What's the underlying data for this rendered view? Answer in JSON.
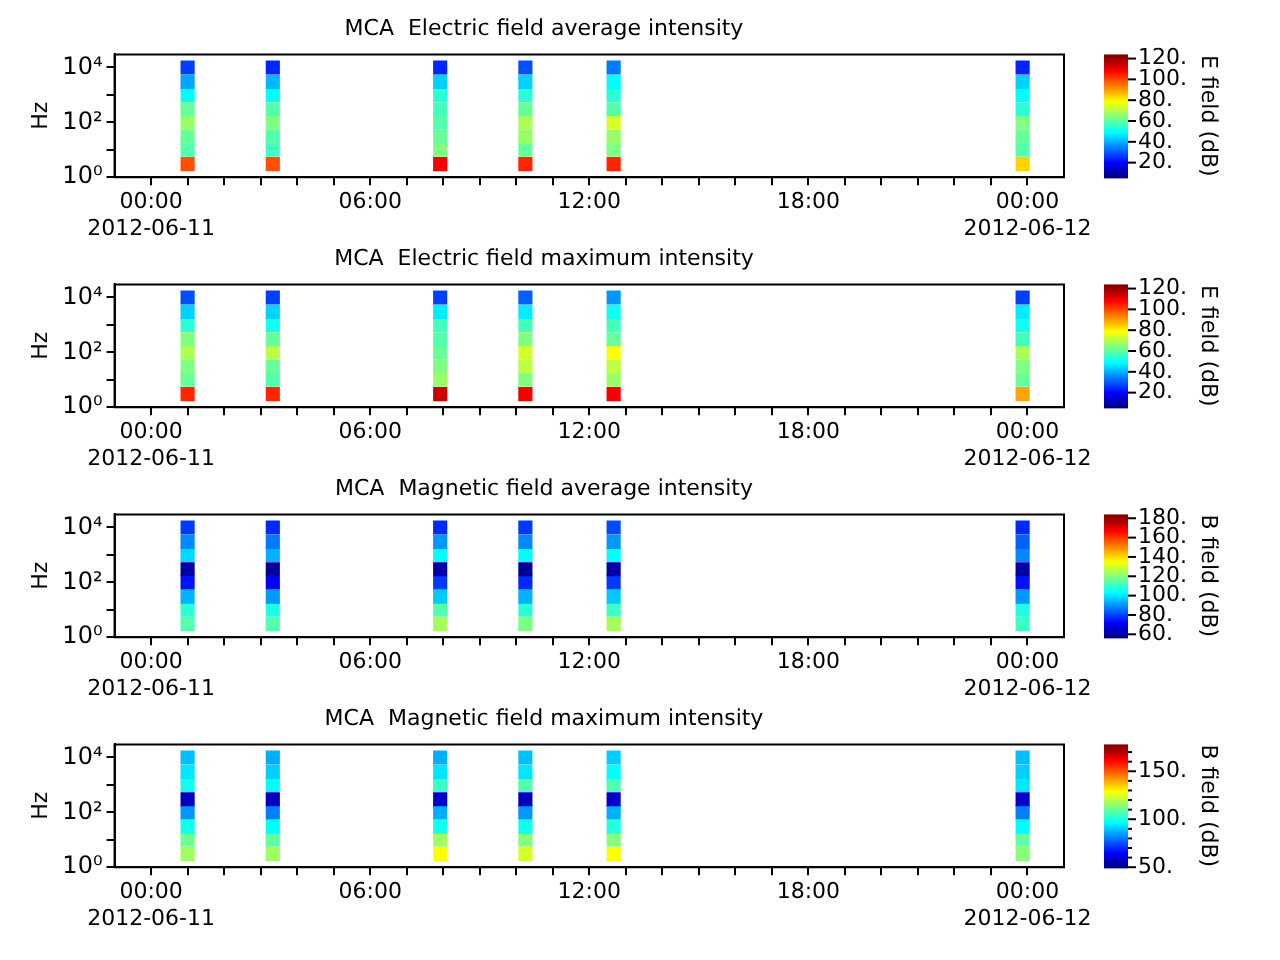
{
  "chart_data": [
    {
      "type": "scatter",
      "title": "MCA  Electric field average intensity",
      "ylabel": "Hz",
      "clabel": "E field (dB)",
      "marker": "square",
      "log": "y",
      "clim": [
        6,
        124
      ],
      "cticks": [
        {
          "value": 20,
          "label": "20."
        },
        {
          "value": 40,
          "label": "40."
        },
        {
          "value": 60,
          "label": "60."
        },
        {
          "value": 80,
          "label": "80."
        },
        {
          "value": 100,
          "label": "100."
        },
        {
          "value": 120,
          "label": "120."
        }
      ],
      "x": [
        "2012-06-11T01:00",
        "2012-06-11T01:00",
        "2012-06-11T01:00",
        "2012-06-11T01:00",
        "2012-06-11T01:00",
        "2012-06-11T01:00",
        "2012-06-11T01:00",
        "2012-06-11T01:00",
        "2012-06-11T03:20",
        "2012-06-11T03:20",
        "2012-06-11T03:20",
        "2012-06-11T03:20",
        "2012-06-11T03:20",
        "2012-06-11T03:20",
        "2012-06-11T03:20",
        "2012-06-11T03:20",
        "2012-06-11T07:55",
        "2012-06-11T07:55",
        "2012-06-11T07:55",
        "2012-06-11T07:55",
        "2012-06-11T07:55",
        "2012-06-11T07:55",
        "2012-06-11T07:55",
        "2012-06-11T07:55",
        "2012-06-11T10:15",
        "2012-06-11T10:15",
        "2012-06-11T10:15",
        "2012-06-11T10:15",
        "2012-06-11T10:15",
        "2012-06-11T10:15",
        "2012-06-11T10:15",
        "2012-06-11T10:15",
        "2012-06-11T12:40",
        "2012-06-11T12:40",
        "2012-06-11T12:40",
        "2012-06-11T12:40",
        "2012-06-11T12:40",
        "2012-06-11T12:40",
        "2012-06-11T12:40",
        "2012-06-11T12:40",
        "2012-06-11T23:52",
        "2012-06-11T23:52",
        "2012-06-11T23:52",
        "2012-06-11T23:52",
        "2012-06-11T23:52",
        "2012-06-11T23:52",
        "2012-06-11T23:52",
        "2012-06-11T23:52"
      ],
      "values": [
        3,
        10,
        30,
        100,
        300,
        1000,
        3000,
        10000,
        3,
        10,
        30,
        100,
        300,
        1000,
        3000,
        10000,
        3,
        10,
        30,
        100,
        300,
        1000,
        3000,
        10000,
        3,
        10,
        30,
        100,
        300,
        1000,
        3000,
        10000,
        3,
        10,
        30,
        100,
        300,
        1000,
        3000,
        10000,
        3,
        10,
        30,
        100,
        300,
        1000,
        3000,
        10000
      ],
      "cvalues": [
        100,
        60,
        62,
        68,
        62,
        50,
        40,
        28,
        100,
        58,
        60,
        65,
        60,
        50,
        42,
        25,
        110,
        65,
        62,
        60,
        58,
        55,
        45,
        25,
        105,
        62,
        68,
        70,
        62,
        55,
        45,
        30,
        105,
        65,
        68,
        75,
        60,
        55,
        50,
        35,
        85,
        60,
        62,
        65,
        55,
        50,
        45,
        25
      ],
      "xlim": [
        "2012-06-10T23:00",
        "2012-06-12T01:00"
      ],
      "xticks": [
        {
          "value": "2012-06-11T00:00",
          "label": "00:00\n2012-06-11"
        },
        {
          "value": "2012-06-11T06:00",
          "label": "06:00"
        },
        {
          "value": "2012-06-11T12:00",
          "label": "12:00"
        },
        {
          "value": "2012-06-11T18:00",
          "label": "18:00"
        },
        {
          "value": "2012-06-12T00:00",
          "label": "00:00\n2012-06-12"
        },
        {
          "value": "2012-06-11T01:00",
          "label": null
        },
        {
          "value": "2012-06-11T02:00",
          "label": null
        },
        {
          "value": "2012-06-11T03:00",
          "label": null
        },
        {
          "value": "2012-06-11T04:00",
          "label": null
        },
        {
          "value": "2012-06-11T05:00",
          "label": null
        },
        {
          "value": "2012-06-11T07:00",
          "label": null
        },
        {
          "value": "2012-06-11T08:00",
          "label": null
        },
        {
          "value": "2012-06-11T09:00",
          "label": null
        },
        {
          "value": "2012-06-11T10:00",
          "label": null
        },
        {
          "value": "2012-06-11T11:00",
          "label": null
        },
        {
          "value": "2012-06-11T13:00",
          "label": null
        },
        {
          "value": "2012-06-11T14:00",
          "label": null
        },
        {
          "value": "2012-06-11T15:00",
          "label": null
        },
        {
          "value": "2012-06-11T16:00",
          "label": null
        },
        {
          "value": "2012-06-11T17:00",
          "label": null
        },
        {
          "value": "2012-06-11T19:00",
          "label": null
        },
        {
          "value": "2012-06-11T20:00",
          "label": null
        },
        {
          "value": "2012-06-11T21:00",
          "label": null
        },
        {
          "value": "2012-06-11T22:00",
          "label": null
        },
        {
          "value": "2012-06-11T23:00",
          "label": null
        }
      ],
      "ylim": [
        1,
        30000
      ],
      "yticks": [
        {
          "value": 1,
          "label": "10⁰"
        },
        {
          "value": 10,
          "label": null
        },
        {
          "value": 100,
          "label": "10²"
        },
        {
          "value": 1000,
          "label": null
        },
        {
          "value": 10000,
          "label": "10⁴"
        }
      ]
    },
    {
      "type": "scatter",
      "title": "MCA  Electric field maximum intensity",
      "ylabel": "Hz",
      "clabel": "E field (dB)",
      "marker": "square",
      "log": "y",
      "clim": [
        6,
        124
      ],
      "cticks": [
        {
          "value": 20,
          "label": "20."
        },
        {
          "value": 40,
          "label": "40."
        },
        {
          "value": 60,
          "label": "60."
        },
        {
          "value": 80,
          "label": "80."
        },
        {
          "value": 100,
          "label": "100."
        },
        {
          "value": 120,
          "label": "120."
        }
      ],
      "x": [
        "2012-06-11T01:00",
        "2012-06-11T01:00",
        "2012-06-11T01:00",
        "2012-06-11T01:00",
        "2012-06-11T01:00",
        "2012-06-11T01:00",
        "2012-06-11T01:00",
        "2012-06-11T01:00",
        "2012-06-11T03:20",
        "2012-06-11T03:20",
        "2012-06-11T03:20",
        "2012-06-11T03:20",
        "2012-06-11T03:20",
        "2012-06-11T03:20",
        "2012-06-11T03:20",
        "2012-06-11T03:20",
        "2012-06-11T07:55",
        "2012-06-11T07:55",
        "2012-06-11T07:55",
        "2012-06-11T07:55",
        "2012-06-11T07:55",
        "2012-06-11T07:55",
        "2012-06-11T07:55",
        "2012-06-11T07:55",
        "2012-06-11T10:15",
        "2012-06-11T10:15",
        "2012-06-11T10:15",
        "2012-06-11T10:15",
        "2012-06-11T10:15",
        "2012-06-11T10:15",
        "2012-06-11T10:15",
        "2012-06-11T10:15",
        "2012-06-11T12:40",
        "2012-06-11T12:40",
        "2012-06-11T12:40",
        "2012-06-11T12:40",
        "2012-06-11T12:40",
        "2012-06-11T12:40",
        "2012-06-11T12:40",
        "2012-06-11T12:40",
        "2012-06-11T23:52",
        "2012-06-11T23:52",
        "2012-06-11T23:52",
        "2012-06-11T23:52",
        "2012-06-11T23:52",
        "2012-06-11T23:52",
        "2012-06-11T23:52",
        "2012-06-11T23:52"
      ],
      "values": [
        3,
        10,
        30,
        100,
        300,
        1000,
        3000,
        10000,
        3,
        10,
        30,
        100,
        300,
        1000,
        3000,
        10000,
        3,
        10,
        30,
        100,
        300,
        1000,
        3000,
        10000,
        3,
        10,
        30,
        100,
        300,
        1000,
        3000,
        10000,
        3,
        10,
        30,
        100,
        300,
        1000,
        3000,
        10000,
        3,
        10,
        30,
        100,
        300,
        1000,
        3000,
        10000
      ],
      "cvalues": [
        105,
        62,
        65,
        70,
        65,
        55,
        45,
        30,
        105,
        60,
        62,
        72,
        62,
        52,
        45,
        28,
        115,
        68,
        65,
        62,
        60,
        58,
        48,
        28,
        110,
        65,
        72,
        75,
        65,
        58,
        48,
        32,
        110,
        68,
        72,
        80,
        62,
        58,
        52,
        38,
        90,
        62,
        65,
        70,
        58,
        52,
        48,
        28
      ],
      "xlim": [
        "2012-06-10T23:00",
        "2012-06-12T01:00"
      ],
      "xticks": [
        {
          "value": "2012-06-11T00:00",
          "label": "00:00\n2012-06-11"
        },
        {
          "value": "2012-06-11T06:00",
          "label": "06:00"
        },
        {
          "value": "2012-06-11T12:00",
          "label": "12:00"
        },
        {
          "value": "2012-06-11T18:00",
          "label": "18:00"
        },
        {
          "value": "2012-06-12T00:00",
          "label": "00:00\n2012-06-12"
        },
        {
          "value": "2012-06-11T01:00",
          "label": null
        },
        {
          "value": "2012-06-11T02:00",
          "label": null
        },
        {
          "value": "2012-06-11T03:00",
          "label": null
        },
        {
          "value": "2012-06-11T04:00",
          "label": null
        },
        {
          "value": "2012-06-11T05:00",
          "label": null
        },
        {
          "value": "2012-06-11T07:00",
          "label": null
        },
        {
          "value": "2012-06-11T08:00",
          "label": null
        },
        {
          "value": "2012-06-11T09:00",
          "label": null
        },
        {
          "value": "2012-06-11T10:00",
          "label": null
        },
        {
          "value": "2012-06-11T11:00",
          "label": null
        },
        {
          "value": "2012-06-11T13:00",
          "label": null
        },
        {
          "value": "2012-06-11T14:00",
          "label": null
        },
        {
          "value": "2012-06-11T15:00",
          "label": null
        },
        {
          "value": "2012-06-11T16:00",
          "label": null
        },
        {
          "value": "2012-06-11T17:00",
          "label": null
        },
        {
          "value": "2012-06-11T19:00",
          "label": null
        },
        {
          "value": "2012-06-11T20:00",
          "label": null
        },
        {
          "value": "2012-06-11T21:00",
          "label": null
        },
        {
          "value": "2012-06-11T22:00",
          "label": null
        },
        {
          "value": "2012-06-11T23:00",
          "label": null
        }
      ],
      "ylim": [
        1,
        30000
      ],
      "yticks": [
        {
          "value": 1,
          "label": "10⁰"
        },
        {
          "value": 10,
          "label": null
        },
        {
          "value": 100,
          "label": "10²"
        },
        {
          "value": 1000,
          "label": null
        },
        {
          "value": 10000,
          "label": "10⁴"
        }
      ]
    },
    {
      "type": "scatter",
      "title": "MCA  Magnetic field average intensity",
      "ylabel": "Hz",
      "clabel": "B field (dB)",
      "marker": "square",
      "log": "y",
      "clim": [
        57,
        184
      ],
      "cticks": [
        {
          "value": 60,
          "label": "60."
        },
        {
          "value": 80,
          "label": "80."
        },
        {
          "value": 100,
          "label": "100."
        },
        {
          "value": 120,
          "label": "120."
        },
        {
          "value": 140,
          "label": "140."
        },
        {
          "value": 160,
          "label": "160."
        },
        {
          "value": 180,
          "label": "180."
        }
      ],
      "x": [
        "2012-06-11T01:00",
        "2012-06-11T01:00",
        "2012-06-11T01:00",
        "2012-06-11T01:00",
        "2012-06-11T01:00",
        "2012-06-11T01:00",
        "2012-06-11T01:00",
        "2012-06-11T01:00",
        "2012-06-11T03:20",
        "2012-06-11T03:20",
        "2012-06-11T03:20",
        "2012-06-11T03:20",
        "2012-06-11T03:20",
        "2012-06-11T03:20",
        "2012-06-11T03:20",
        "2012-06-11T03:20",
        "2012-06-11T07:55",
        "2012-06-11T07:55",
        "2012-06-11T07:55",
        "2012-06-11T07:55",
        "2012-06-11T07:55",
        "2012-06-11T07:55",
        "2012-06-11T07:55",
        "2012-06-11T07:55",
        "2012-06-11T10:15",
        "2012-06-11T10:15",
        "2012-06-11T10:15",
        "2012-06-11T10:15",
        "2012-06-11T10:15",
        "2012-06-11T10:15",
        "2012-06-11T10:15",
        "2012-06-11T10:15",
        "2012-06-11T12:40",
        "2012-06-11T12:40",
        "2012-06-11T12:40",
        "2012-06-11T12:40",
        "2012-06-11T12:40",
        "2012-06-11T12:40",
        "2012-06-11T12:40",
        "2012-06-11T12:40",
        "2012-06-11T23:52",
        "2012-06-11T23:52",
        "2012-06-11T23:52",
        "2012-06-11T23:52",
        "2012-06-11T23:52",
        "2012-06-11T23:52",
        "2012-06-11T23:52",
        "2012-06-11T23:52"
      ],
      "values": [
        3,
        10,
        30,
        100,
        300,
        1000,
        3000,
        10000,
        3,
        10,
        30,
        100,
        300,
        1000,
        3000,
        10000,
        3,
        10,
        30,
        100,
        300,
        1000,
        3000,
        10000,
        3,
        10,
        30,
        100,
        300,
        1000,
        3000,
        10000,
        3,
        10,
        30,
        100,
        300,
        1000,
        3000,
        10000,
        3,
        10,
        30,
        100,
        300,
        1000,
        3000,
        10000
      ],
      "cvalues": [
        115,
        110,
        95,
        75,
        62,
        100,
        90,
        80,
        115,
        108,
        92,
        72,
        60,
        95,
        88,
        78,
        125,
        115,
        98,
        80,
        62,
        105,
        92,
        78,
        120,
        110,
        95,
        78,
        60,
        105,
        90,
        80,
        125,
        112,
        98,
        80,
        62,
        105,
        92,
        82,
        112,
        108,
        92,
        75,
        62,
        90,
        85,
        78
      ],
      "xlim": [
        "2012-06-10T23:00",
        "2012-06-12T01:00"
      ],
      "xticks": [
        {
          "value": "2012-06-11T00:00",
          "label": "00:00\n2012-06-11"
        },
        {
          "value": "2012-06-11T06:00",
          "label": "06:00"
        },
        {
          "value": "2012-06-11T12:00",
          "label": "12:00"
        },
        {
          "value": "2012-06-11T18:00",
          "label": "18:00"
        },
        {
          "value": "2012-06-12T00:00",
          "label": "00:00\n2012-06-12"
        },
        {
          "value": "2012-06-11T01:00",
          "label": null
        },
        {
          "value": "2012-06-11T02:00",
          "label": null
        },
        {
          "value": "2012-06-11T03:00",
          "label": null
        },
        {
          "value": "2012-06-11T04:00",
          "label": null
        },
        {
          "value": "2012-06-11T05:00",
          "label": null
        },
        {
          "value": "2012-06-11T07:00",
          "label": null
        },
        {
          "value": "2012-06-11T08:00",
          "label": null
        },
        {
          "value": "2012-06-11T09:00",
          "label": null
        },
        {
          "value": "2012-06-11T10:00",
          "label": null
        },
        {
          "value": "2012-06-11T11:00",
          "label": null
        },
        {
          "value": "2012-06-11T13:00",
          "label": null
        },
        {
          "value": "2012-06-11T14:00",
          "label": null
        },
        {
          "value": "2012-06-11T15:00",
          "label": null
        },
        {
          "value": "2012-06-11T16:00",
          "label": null
        },
        {
          "value": "2012-06-11T17:00",
          "label": null
        },
        {
          "value": "2012-06-11T19:00",
          "label": null
        },
        {
          "value": "2012-06-11T20:00",
          "label": null
        },
        {
          "value": "2012-06-11T21:00",
          "label": null
        },
        {
          "value": "2012-06-11T22:00",
          "label": null
        },
        {
          "value": "2012-06-11T23:00",
          "label": null
        }
      ],
      "ylim": [
        1,
        30000
      ],
      "yticks": [
        {
          "value": 1,
          "label": "10⁰"
        },
        {
          "value": 10,
          "label": null
        },
        {
          "value": 100,
          "label": "10²"
        },
        {
          "value": 1000,
          "label": null
        },
        {
          "value": 10000,
          "label": "10⁴"
        }
      ]
    },
    {
      "type": "scatter",
      "title": "MCA  Magnetic field maximum intensity",
      "ylabel": "Hz",
      "clabel": "B field (dB)",
      "marker": "square",
      "log": "y",
      "clim": [
        50,
        178
      ],
      "cticks": [
        {
          "value": 50,
          "label": "50."
        },
        {
          "value": 60,
          "label": null
        },
        {
          "value": 70,
          "label": null
        },
        {
          "value": 80,
          "label": null
        },
        {
          "value": 90,
          "label": null
        },
        {
          "value": 100,
          "label": "100."
        },
        {
          "value": 110,
          "label": null
        },
        {
          "value": 120,
          "label": null
        },
        {
          "value": 130,
          "label": null
        },
        {
          "value": 140,
          "label": null
        },
        {
          "value": 150,
          "label": "150."
        },
        {
          "value": 160,
          "label": null
        },
        {
          "value": 170,
          "label": null
        }
      ],
      "x": [
        "2012-06-11T01:00",
        "2012-06-11T01:00",
        "2012-06-11T01:00",
        "2012-06-11T01:00",
        "2012-06-11T01:00",
        "2012-06-11T01:00",
        "2012-06-11T01:00",
        "2012-06-11T01:00",
        "2012-06-11T03:20",
        "2012-06-11T03:20",
        "2012-06-11T03:20",
        "2012-06-11T03:20",
        "2012-06-11T03:20",
        "2012-06-11T03:20",
        "2012-06-11T03:20",
        "2012-06-11T03:20",
        "2012-06-11T07:55",
        "2012-06-11T07:55",
        "2012-06-11T07:55",
        "2012-06-11T07:55",
        "2012-06-11T07:55",
        "2012-06-11T07:55",
        "2012-06-11T07:55",
        "2012-06-11T07:55",
        "2012-06-11T10:15",
        "2012-06-11T10:15",
        "2012-06-11T10:15",
        "2012-06-11T10:15",
        "2012-06-11T10:15",
        "2012-06-11T10:15",
        "2012-06-11T10:15",
        "2012-06-11T10:15",
        "2012-06-11T12:40",
        "2012-06-11T12:40",
        "2012-06-11T12:40",
        "2012-06-11T12:40",
        "2012-06-11T12:40",
        "2012-06-11T12:40",
        "2012-06-11T12:40",
        "2012-06-11T12:40",
        "2012-06-11T23:52",
        "2012-06-11T23:52",
        "2012-06-11T23:52",
        "2012-06-11T23:52",
        "2012-06-11T23:52",
        "2012-06-11T23:52",
        "2012-06-11T23:52",
        "2012-06-11T23:52"
      ],
      "values": [
        3,
        10,
        30,
        100,
        300,
        1000,
        3000,
        10000,
        3,
        10,
        30,
        100,
        300,
        1000,
        3000,
        10000,
        3,
        10,
        30,
        100,
        300,
        1000,
        3000,
        10000,
        3,
        10,
        30,
        100,
        300,
        1000,
        3000,
        10000,
        3,
        10,
        30,
        100,
        300,
        1000,
        3000,
        10000,
        3,
        10,
        30,
        100,
        300,
        1000,
        3000,
        10000
      ],
      "cvalues": [
        118,
        112,
        100,
        85,
        58,
        100,
        95,
        90,
        118,
        110,
        98,
        82,
        58,
        98,
        92,
        88,
        130,
        118,
        100,
        88,
        60,
        105,
        95,
        88,
        125,
        115,
        100,
        85,
        58,
        108,
        95,
        90,
        130,
        115,
        102,
        88,
        60,
        108,
        98,
        92,
        115,
        110,
        98,
        82,
        60,
        95,
        92,
        90
      ],
      "xlim": [
        "2012-06-10T23:00",
        "2012-06-12T01:00"
      ],
      "xticks": [
        {
          "value": "2012-06-11T00:00",
          "label": "00:00\n2012-06-11"
        },
        {
          "value": "2012-06-11T06:00",
          "label": "06:00"
        },
        {
          "value": "2012-06-11T12:00",
          "label": "12:00"
        },
        {
          "value": "2012-06-11T18:00",
          "label": "18:00"
        },
        {
          "value": "2012-06-12T00:00",
          "label": "00:00\n2012-06-12"
        },
        {
          "value": "2012-06-11T01:00",
          "label": null
        },
        {
          "value": "2012-06-11T02:00",
          "label": null
        },
        {
          "value": "2012-06-11T03:00",
          "label": null
        },
        {
          "value": "2012-06-11T04:00",
          "label": null
        },
        {
          "value": "2012-06-11T05:00",
          "label": null
        },
        {
          "value": "2012-06-11T07:00",
          "label": null
        },
        {
          "value": "2012-06-11T08:00",
          "label": null
        },
        {
          "value": "2012-06-11T09:00",
          "label": null
        },
        {
          "value": "2012-06-11T10:00",
          "label": null
        },
        {
          "value": "2012-06-11T11:00",
          "label": null
        },
        {
          "value": "2012-06-11T13:00",
          "label": null
        },
        {
          "value": "2012-06-11T14:00",
          "label": null
        },
        {
          "value": "2012-06-11T15:00",
          "label": null
        },
        {
          "value": "2012-06-11T16:00",
          "label": null
        },
        {
          "value": "2012-06-11T17:00",
          "label": null
        },
        {
          "value": "2012-06-11T19:00",
          "label": null
        },
        {
          "value": "2012-06-11T20:00",
          "label": null
        },
        {
          "value": "2012-06-11T21:00",
          "label": null
        },
        {
          "value": "2012-06-11T22:00",
          "label": null
        },
        {
          "value": "2012-06-11T23:00",
          "label": null
        }
      ],
      "ylim": [
        1,
        30000
      ],
      "yticks": [
        {
          "value": 1,
          "label": "10⁰"
        },
        {
          "value": 10,
          "label": null
        },
        {
          "value": 100,
          "label": "10²"
        },
        {
          "value": 1000,
          "label": null
        },
        {
          "value": 10000,
          "label": "10⁴"
        }
      ]
    }
  ]
}
